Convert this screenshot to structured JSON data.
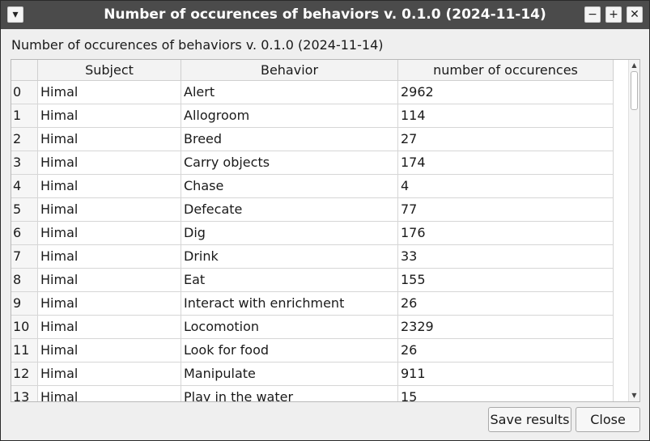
{
  "window": {
    "title": "Number of occurences of behaviors v. 0.1.0 (2024-11-14)",
    "menu_glyph": "▾",
    "minimize_glyph": "−",
    "maximize_glyph": "+",
    "close_glyph": "✕"
  },
  "label": "Number of occurences of behaviors v. 0.1.0 (2024-11-14)",
  "table": {
    "columns": [
      "Subject",
      "Behavior",
      "number of occurences"
    ],
    "rows": [
      {
        "index": "0",
        "subject": "Himal",
        "behavior": "Alert",
        "count": "2962"
      },
      {
        "index": "1",
        "subject": "Himal",
        "behavior": "Allogroom",
        "count": "114"
      },
      {
        "index": "2",
        "subject": "Himal",
        "behavior": "Breed",
        "count": "27"
      },
      {
        "index": "3",
        "subject": "Himal",
        "behavior": "Carry objects",
        "count": "174"
      },
      {
        "index": "4",
        "subject": "Himal",
        "behavior": "Chase",
        "count": "4"
      },
      {
        "index": "5",
        "subject": "Himal",
        "behavior": "Defecate",
        "count": "77"
      },
      {
        "index": "6",
        "subject": "Himal",
        "behavior": "Dig",
        "count": "176"
      },
      {
        "index": "7",
        "subject": "Himal",
        "behavior": "Drink",
        "count": "33"
      },
      {
        "index": "8",
        "subject": "Himal",
        "behavior": "Eat",
        "count": "155"
      },
      {
        "index": "9",
        "subject": "Himal",
        "behavior": "Interact with enrichment",
        "count": "26"
      },
      {
        "index": "10",
        "subject": "Himal",
        "behavior": "Locomotion",
        "count": "2329"
      },
      {
        "index": "11",
        "subject": "Himal",
        "behavior": "Look for food",
        "count": "26"
      },
      {
        "index": "12",
        "subject": "Himal",
        "behavior": "Manipulate",
        "count": "911"
      },
      {
        "index": "13",
        "subject": "Himal",
        "behavior": "Play in the water",
        "count": "15"
      }
    ]
  },
  "scrollbar": {
    "up_glyph": "▲",
    "down_glyph": "▼"
  },
  "buttons": {
    "save": "Save results",
    "close": "Close"
  }
}
